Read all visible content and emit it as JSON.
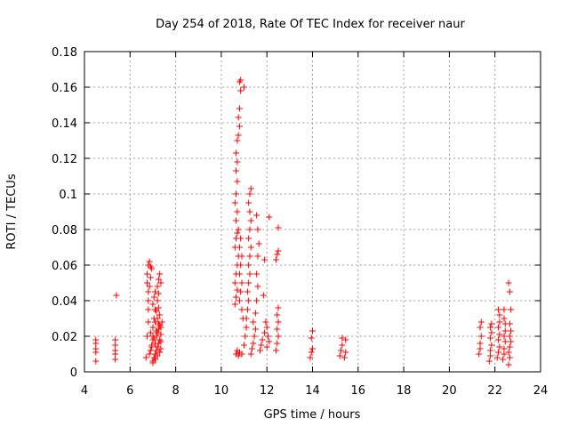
{
  "chart_data": {
    "type": "scatter",
    "title": "Day 254 of 2018, Rate Of TEC Index for receiver naur",
    "xlabel": "GPS time / hours",
    "ylabel": "ROTI / TECUs",
    "xlim": [
      4,
      24
    ],
    "ylim": [
      0,
      0.18
    ],
    "xticks": [
      "4",
      "6",
      "8",
      "10",
      "12",
      "14",
      "16",
      "18",
      "20",
      "22",
      "24"
    ],
    "yticks": [
      "0",
      "0.02",
      "0.04",
      "0.06",
      "0.08",
      "0.1",
      "0.12",
      "0.14",
      "0.16",
      "0.18"
    ],
    "grid": true,
    "marker": "plus",
    "color": "#ff0000",
    "series": [
      {
        "points": [
          [
            4.5,
            0.006
          ],
          [
            4.5,
            0.011
          ],
          [
            4.5,
            0.013
          ],
          [
            4.5,
            0.016
          ],
          [
            4.5,
            0.018
          ],
          [
            5.35,
            0.007
          ],
          [
            5.35,
            0.01
          ],
          [
            5.35,
            0.012
          ],
          [
            5.35,
            0.015
          ],
          [
            5.35,
            0.018
          ],
          [
            5.4,
            0.043
          ],
          [
            6.7,
            0.008
          ],
          [
            6.75,
            0.02
          ],
          [
            6.8,
            0.028
          ],
          [
            6.8,
            0.035
          ],
          [
            6.8,
            0.04
          ],
          [
            6.75,
            0.05
          ],
          [
            6.75,
            0.055
          ],
          [
            6.8,
            0.06
          ],
          [
            6.85,
            0.062
          ],
          [
            6.9,
            0.059
          ],
          [
            6.95,
            0.058
          ],
          [
            6.9,
            0.053
          ],
          [
            6.85,
            0.048
          ],
          [
            6.8,
            0.045
          ],
          [
            6.85,
            0.01
          ],
          [
            6.9,
            0.012
          ],
          [
            6.95,
            0.015
          ],
          [
            7.0,
            0.018
          ],
          [
            6.9,
            0.022
          ],
          [
            7.0,
            0.025
          ],
          [
            7.05,
            0.03
          ],
          [
            7.1,
            0.035
          ],
          [
            7.0,
            0.038
          ],
          [
            7.05,
            0.042
          ],
          [
            7.1,
            0.045
          ],
          [
            7.0,
            0.006
          ],
          [
            7.05,
            0.008
          ],
          [
            7.1,
            0.01
          ],
          [
            7.15,
            0.012
          ],
          [
            7.2,
            0.014
          ],
          [
            7.25,
            0.016
          ],
          [
            7.3,
            0.018
          ],
          [
            7.15,
            0.02
          ],
          [
            7.2,
            0.022
          ],
          [
            7.25,
            0.024
          ],
          [
            7.3,
            0.026
          ],
          [
            7.1,
            0.028
          ],
          [
            7.2,
            0.03
          ],
          [
            7.3,
            0.032
          ],
          [
            7.15,
            0.034
          ],
          [
            7.25,
            0.036
          ],
          [
            7.2,
            0.04
          ],
          [
            7.25,
            0.044
          ],
          [
            7.2,
            0.048
          ],
          [
            7.25,
            0.052
          ],
          [
            7.3,
            0.055
          ],
          [
            7.35,
            0.05
          ],
          [
            7.0,
            0.005
          ],
          [
            7.1,
            0.007
          ],
          [
            7.2,
            0.009
          ],
          [
            7.3,
            0.011
          ],
          [
            7.35,
            0.013
          ],
          [
            7.35,
            0.017
          ],
          [
            7.35,
            0.021
          ],
          [
            7.35,
            0.025
          ],
          [
            7.4,
            0.028
          ],
          [
            6.95,
            0.014
          ],
          [
            7.05,
            0.019
          ],
          [
            7.15,
            0.023
          ],
          [
            7.25,
            0.027
          ],
          [
            7.1,
            0.016
          ],
          [
            7.0,
            0.02
          ],
          [
            10.65,
            0.01
          ],
          [
            10.7,
            0.012
          ],
          [
            10.75,
            0.009
          ],
          [
            10.8,
            0.011
          ],
          [
            10.9,
            0.01
          ],
          [
            10.6,
            0.038
          ],
          [
            10.65,
            0.042
          ],
          [
            10.7,
            0.046
          ],
          [
            10.6,
            0.05
          ],
          [
            10.65,
            0.055
          ],
          [
            10.7,
            0.06
          ],
          [
            10.75,
            0.065
          ],
          [
            10.6,
            0.07
          ],
          [
            10.65,
            0.075
          ],
          [
            10.7,
            0.078
          ],
          [
            10.75,
            0.08
          ],
          [
            10.65,
            0.085
          ],
          [
            10.7,
            0.09
          ],
          [
            10.6,
            0.095
          ],
          [
            10.65,
            0.1
          ],
          [
            10.7,
            0.107
          ],
          [
            10.65,
            0.113
          ],
          [
            10.7,
            0.118
          ],
          [
            10.65,
            0.123
          ],
          [
            10.7,
            0.13
          ],
          [
            10.75,
            0.133
          ],
          [
            10.8,
            0.138
          ],
          [
            10.75,
            0.143
          ],
          [
            10.8,
            0.148
          ],
          [
            10.85,
            0.158
          ],
          [
            10.8,
            0.163
          ],
          [
            10.85,
            0.164
          ],
          [
            11.0,
            0.16
          ],
          [
            10.8,
            0.04
          ],
          [
            10.85,
            0.045
          ],
          [
            10.9,
            0.05
          ],
          [
            10.8,
            0.055
          ],
          [
            10.85,
            0.06
          ],
          [
            10.9,
            0.065
          ],
          [
            10.8,
            0.07
          ],
          [
            10.85,
            0.075
          ],
          [
            10.9,
            0.035
          ],
          [
            10.95,
            0.03
          ],
          [
            11.0,
            0.015
          ],
          [
            11.05,
            0.02
          ],
          [
            11.1,
            0.025
          ],
          [
            11.1,
            0.03
          ],
          [
            11.15,
            0.035
          ],
          [
            11.2,
            0.04
          ],
          [
            11.15,
            0.045
          ],
          [
            11.2,
            0.05
          ],
          [
            11.25,
            0.055
          ],
          [
            11.2,
            0.06
          ],
          [
            11.25,
            0.065
          ],
          [
            11.3,
            0.07
          ],
          [
            11.2,
            0.075
          ],
          [
            11.25,
            0.08
          ],
          [
            11.3,
            0.085
          ],
          [
            11.25,
            0.09
          ],
          [
            11.2,
            0.095
          ],
          [
            11.25,
            0.1
          ],
          [
            11.3,
            0.103
          ],
          [
            11.3,
            0.01
          ],
          [
            11.35,
            0.013
          ],
          [
            11.4,
            0.016
          ],
          [
            11.45,
            0.02
          ],
          [
            11.5,
            0.024
          ],
          [
            11.4,
            0.028
          ],
          [
            11.5,
            0.033
          ],
          [
            11.55,
            0.04
          ],
          [
            11.6,
            0.048
          ],
          [
            11.55,
            0.055
          ],
          [
            11.6,
            0.065
          ],
          [
            11.65,
            0.072
          ],
          [
            11.6,
            0.08
          ],
          [
            11.55,
            0.088
          ],
          [
            11.7,
            0.012
          ],
          [
            11.75,
            0.015
          ],
          [
            11.8,
            0.018
          ],
          [
            11.9,
            0.022
          ],
          [
            12.0,
            0.025
          ],
          [
            12.0,
            0.014
          ],
          [
            12.05,
            0.02
          ],
          [
            12.1,
            0.017
          ],
          [
            11.95,
            0.028
          ],
          [
            11.85,
            0.043
          ],
          [
            11.9,
            0.063
          ],
          [
            12.1,
            0.087
          ],
          [
            12.4,
            0.012
          ],
          [
            12.45,
            0.016
          ],
          [
            12.5,
            0.02
          ],
          [
            12.45,
            0.024
          ],
          [
            12.5,
            0.028
          ],
          [
            12.45,
            0.032
          ],
          [
            12.5,
            0.036
          ],
          [
            12.4,
            0.063
          ],
          [
            12.45,
            0.066
          ],
          [
            12.5,
            0.068
          ],
          [
            12.5,
            0.081
          ],
          [
            13.9,
            0.008
          ],
          [
            13.95,
            0.011
          ],
          [
            14.0,
            0.013
          ],
          [
            13.95,
            0.019
          ],
          [
            14.0,
            0.023
          ],
          [
            15.2,
            0.009
          ],
          [
            15.25,
            0.012
          ],
          [
            15.3,
            0.015
          ],
          [
            15.3,
            0.019
          ],
          [
            15.4,
            0.008
          ],
          [
            15.45,
            0.011
          ],
          [
            15.45,
            0.018
          ],
          [
            21.3,
            0.01
          ],
          [
            21.35,
            0.013
          ],
          [
            21.35,
            0.016
          ],
          [
            21.4,
            0.02
          ],
          [
            21.35,
            0.025
          ],
          [
            21.4,
            0.028
          ],
          [
            21.75,
            0.006
          ],
          [
            21.8,
            0.009
          ],
          [
            21.8,
            0.012
          ],
          [
            21.85,
            0.015
          ],
          [
            21.8,
            0.019
          ],
          [
            21.85,
            0.022
          ],
          [
            21.8,
            0.025
          ],
          [
            21.85,
            0.027
          ],
          [
            22.1,
            0.008
          ],
          [
            22.15,
            0.011
          ],
          [
            22.2,
            0.014
          ],
          [
            22.15,
            0.018
          ],
          [
            22.2,
            0.021
          ],
          [
            22.15,
            0.025
          ],
          [
            22.2,
            0.028
          ],
          [
            22.2,
            0.032
          ],
          [
            22.15,
            0.035
          ],
          [
            22.35,
            0.007
          ],
          [
            22.4,
            0.01
          ],
          [
            22.4,
            0.013
          ],
          [
            22.45,
            0.017
          ],
          [
            22.4,
            0.02
          ],
          [
            22.45,
            0.023
          ],
          [
            22.45,
            0.027
          ],
          [
            22.4,
            0.03
          ],
          [
            22.4,
            0.035
          ],
          [
            22.6,
            0.004
          ],
          [
            22.65,
            0.008
          ],
          [
            22.6,
            0.011
          ],
          [
            22.65,
            0.014
          ],
          [
            22.7,
            0.017
          ],
          [
            22.65,
            0.02
          ],
          [
            22.7,
            0.023
          ],
          [
            22.65,
            0.027
          ],
          [
            22.7,
            0.035
          ],
          [
            22.65,
            0.045
          ],
          [
            22.6,
            0.05
          ]
        ]
      }
    ]
  }
}
